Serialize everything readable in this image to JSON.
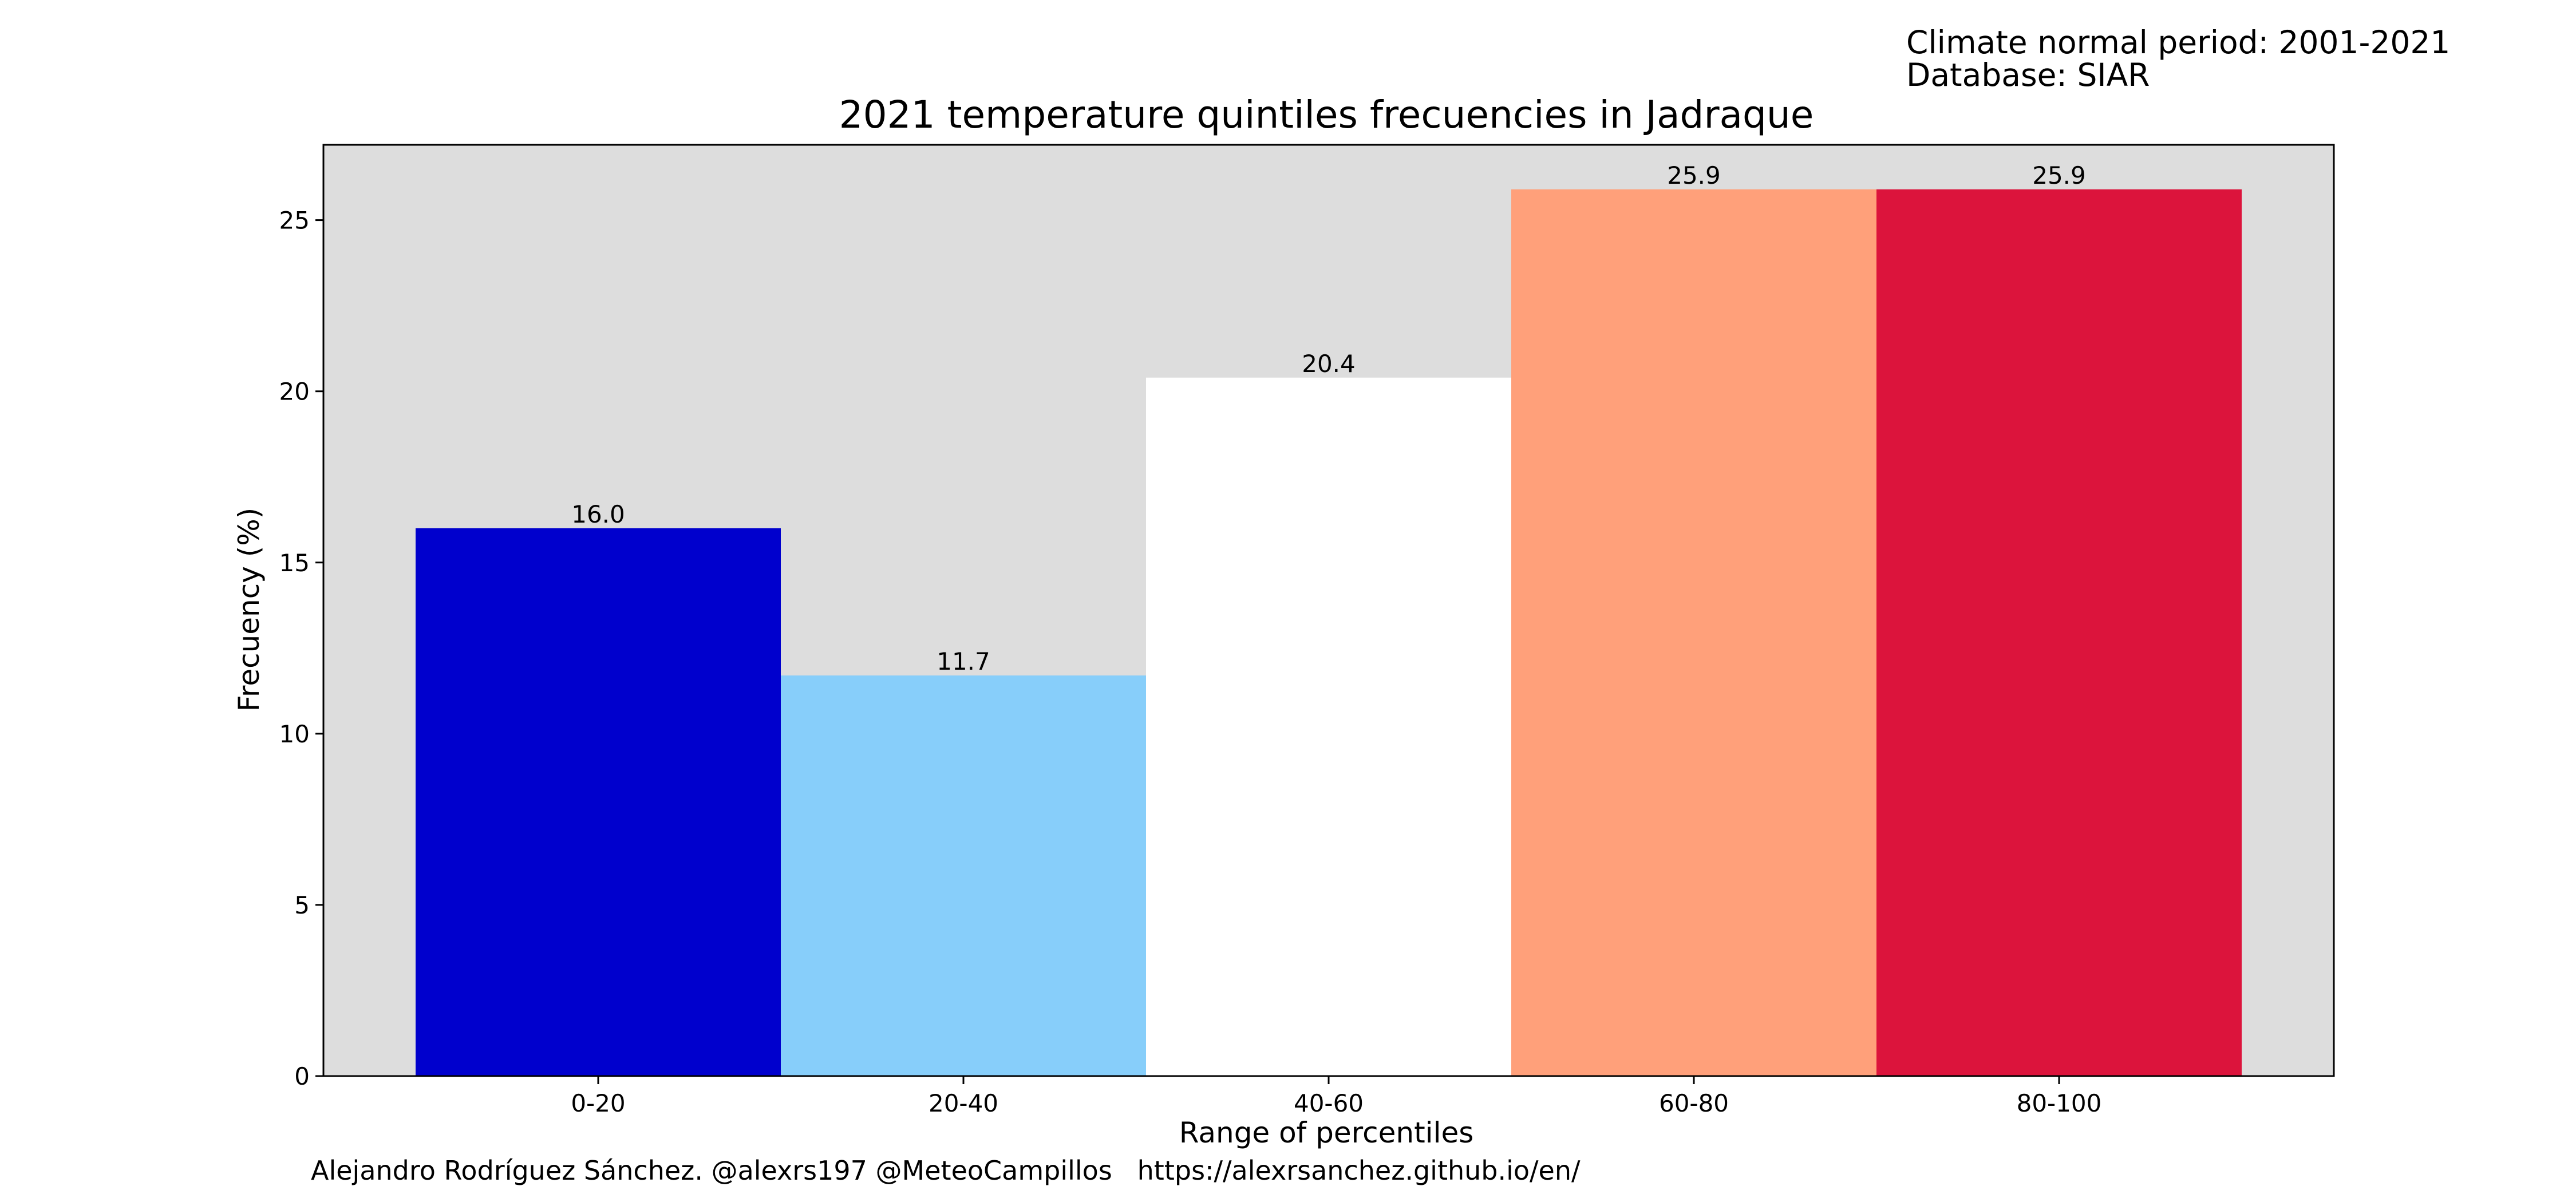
{
  "header": {
    "climate_normal": "Climate normal period: 2001-2021",
    "database": "Database: SIAR"
  },
  "footer": {
    "credits": "Alejandro Rodríguez Sánchez. @alexrs197 @MeteoCampillos   https://alexrsanchez.github.io/en/"
  },
  "chart_data": {
    "type": "bar",
    "title": "2021 temperature quintiles frecuencies in Jadraque",
    "xlabel": "Range of percentiles",
    "ylabel": "Frecuency (%)",
    "categories": [
      "0-20",
      "20-40",
      "40-60",
      "60-80",
      "80-100"
    ],
    "values": [
      16.0,
      11.7,
      20.4,
      25.9,
      25.9
    ],
    "value_labels": [
      "16.0",
      "11.7",
      "20.4",
      "25.9",
      "25.9"
    ],
    "bar_colors": [
      "#0000CD",
      "#87CEFA",
      "#FFFFFF",
      "#FFA07A",
      "#DC143C"
    ],
    "ylim": [
      0,
      27.2
    ],
    "yticks": [
      0,
      5,
      10,
      15,
      20,
      25
    ],
    "ytick_labels": [
      "0",
      "5",
      "10",
      "15",
      "20",
      "25"
    ],
    "background": "#DDDDDD",
    "grid": false,
    "legend": "none"
  }
}
